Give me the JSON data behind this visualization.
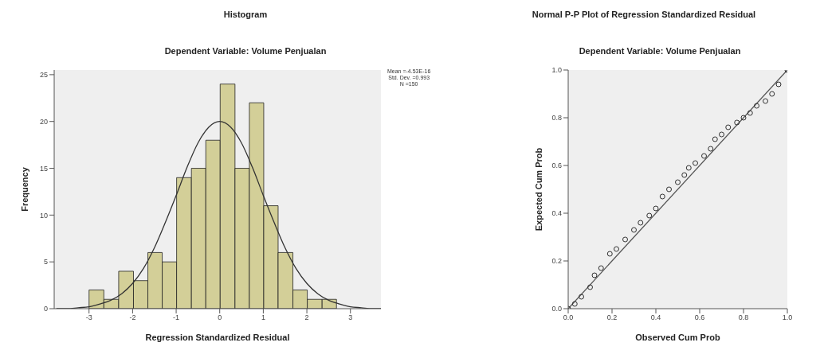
{
  "chart_data": [
    {
      "type": "histogram",
      "title": "Histogram",
      "subtitle": "Dependent Variable: Volume Penjualan",
      "xlabel": "Regression Standardized Residual",
      "ylabel": "Frequency",
      "bins": [
        -3,
        -2.66,
        -2.32,
        -1.98,
        -1.65,
        -1.32,
        -0.99,
        -0.65,
        -0.32,
        0.01,
        0.35,
        0.68,
        1.01,
        1.34,
        1.68,
        2.01,
        2.35,
        2.68
      ],
      "values": [
        2,
        1,
        4,
        3,
        6,
        5,
        14,
        15,
        18,
        24,
        15,
        22,
        11,
        6,
        2,
        1,
        1
      ],
      "color": "#d3cf98",
      "series": [
        {
          "type": "line",
          "color": "#333333",
          "x": [
            -3.75,
            -3.5,
            -3.25,
            -3,
            -2.75,
            -2.5,
            -2.25,
            -2,
            -1.75,
            -1.5,
            -1.25,
            -1,
            -0.75,
            -0.5,
            -0.25,
            0,
            0.25,
            0.5,
            0.75,
            1,
            1.25,
            1.5,
            1.75,
            2,
            2.25,
            2.5,
            2.75,
            3,
            3.25,
            3.5,
            3.7
          ],
          "values": [
            0,
            0,
            0.1,
            0.2,
            0.5,
            0.9,
            1.6,
            2.7,
            4.3,
            6.5,
            9.2,
            12.1,
            15.1,
            17.7,
            19.4,
            20,
            19.4,
            17.7,
            15.1,
            12.1,
            9.2,
            6.5,
            4.3,
            2.7,
            1.6,
            0.9,
            0.5,
            0.2,
            0.1,
            0,
            0
          ]
        }
      ],
      "xlim": [
        -3.8,
        3.7
      ],
      "xticks": [
        -3,
        -2,
        -1,
        0,
        1,
        2,
        3
      ],
      "ylim": [
        0,
        25.5
      ],
      "yticks": [
        0,
        5,
        10,
        15,
        20,
        25
      ],
      "annotations": [
        "Mean =-4.53E-16",
        "Std. Dev. =0.993",
        "N =150"
      ]
    },
    {
      "type": "scatter",
      "title": "Normal P-P Plot of Regression Standardized Residual",
      "subtitle": "Dependent Variable: Volume Penjualan",
      "xlabel": "Observed Cum Prob",
      "ylabel": "Expected Cum Prob",
      "series": [
        {
          "type": "scatter",
          "marker": "circle",
          "color": "#333333",
          "x": [
            0,
            0.03,
            0.06,
            0.1,
            0.12,
            0.15,
            0.19,
            0.22,
            0.26,
            0.3,
            0.33,
            0.37,
            0.4,
            0.43,
            0.46,
            0.5,
            0.53,
            0.55,
            0.58,
            0.62,
            0.65,
            0.67,
            0.7,
            0.73,
            0.77,
            0.8,
            0.83,
            0.86,
            0.9,
            0.93,
            0.96,
            1
          ],
          "values": [
            0,
            0.02,
            0.05,
            0.09,
            0.14,
            0.17,
            0.23,
            0.25,
            0.29,
            0.33,
            0.36,
            0.39,
            0.42,
            0.47,
            0.5,
            0.53,
            0.56,
            0.59,
            0.61,
            0.64,
            0.67,
            0.71,
            0.73,
            0.76,
            0.78,
            0.8,
            0.82,
            0.85,
            0.87,
            0.9,
            0.94,
            1
          ]
        },
        {
          "type": "line",
          "color": "#555555",
          "x": [
            0,
            1
          ],
          "values": [
            0,
            1
          ]
        }
      ],
      "xlim": [
        0,
        1
      ],
      "xticks": [
        {
          "value": 0,
          "label": "0.0"
        },
        0.2,
        0.4,
        0.6,
        0.8,
        {
          "value": 1,
          "label": "1.0"
        }
      ],
      "ylim": [
        0,
        1
      ],
      "yticks": [
        {
          "value": 0,
          "label": "0.0"
        },
        0.2,
        0.4,
        0.6,
        0.8,
        {
          "value": 1,
          "label": "1.0"
        }
      ]
    }
  ]
}
